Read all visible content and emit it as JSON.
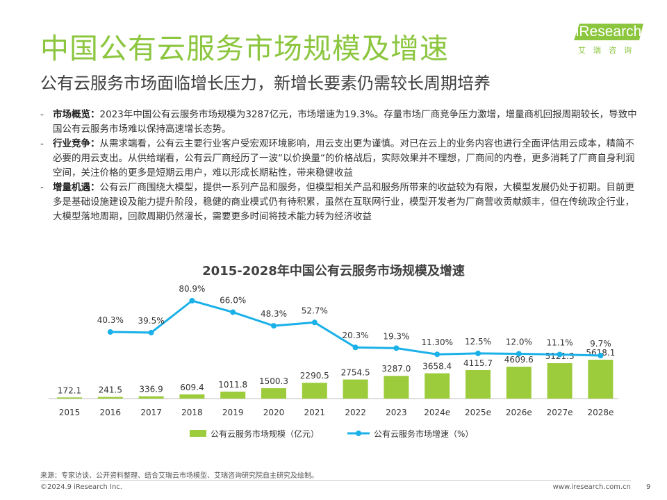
{
  "header": {
    "title": "中国公有云服务市场规模及增速",
    "subtitle": "公有云服务市场面临增长压力，新增长要素仍需较长周期培养",
    "logo_text": "iResearch",
    "logo_cn": "艾瑞咨询",
    "brand_color": "#8cc63f"
  },
  "bullets": [
    {
      "label": "市场概览：",
      "text": "2023年中国公有云服务市场规模为3287亿元，市场增速为19.3%。存量市场厂商竞争压力激增，增量商机回报周期较长，导致中国公有云服务市场难以保持高速增长态势。"
    },
    {
      "label": "行业竞争：",
      "text": "从需求端看，公有云主要行业客户受宏观环境影响，用云支出更为谨慎。对已在云上的业务内容也进行全面评估用云成本，精简不必要的用云支出。从供给端看，公有云厂商经历了一波“以价换量“的价格战后，实际效果并不理想，厂商间的内卷，更多消耗了厂商自身利润空间，关注价格的更多是短期云用户，难以形成长期粘性，带来稳健收益"
    },
    {
      "label": "增量机遇：",
      "text": "公有云厂商围绕大模型，提供一系列产品和服务，但模型相关产品和服务所带来的收益较为有限，大模型发展仍处于初期。目前更多是基础设施建设及能力提升阶段，稳健的商业模式仍有待积累，虽然在互联网行业，模型开发者为厂商营收贡献颇丰，但在传统政企行业，大模型落地周期，回款周期仍然漫长，需要更多时间将技术能力转为经济收益"
    }
  ],
  "chart_data": {
    "type": "bar",
    "title": "2015-2028年中国公有云服务市场规模及增速",
    "categories": [
      "2015",
      "2016",
      "2017",
      "2018",
      "2019",
      "2020",
      "2021",
      "2022",
      "2023",
      "2024e",
      "2025e",
      "2026e",
      "2027e",
      "2028e"
    ],
    "series": [
      {
        "name": "公有云服务市场规模（亿元）",
        "kind": "bar",
        "color": "#9ccc3c",
        "values": [
          172.1,
          241.5,
          336.9,
          609.4,
          1011.8,
          1500.3,
          2290.5,
          2754.5,
          3287.0,
          3658.4,
          4115.7,
          4609.6,
          5121.3,
          5618.1
        ],
        "labels": [
          "172.1",
          "241.5",
          "336.9",
          "609.4",
          "1011.8",
          "1500.3",
          "2290.5",
          "2754.5",
          "3287.0",
          "3658.4",
          "4115.7",
          "4609.6",
          "5121.3",
          "5618.1"
        ]
      },
      {
        "name": "公有云服务市场增速（%）",
        "kind": "line",
        "color": "#1ab0e8",
        "values": [
          null,
          40.3,
          39.5,
          80.9,
          66.0,
          48.3,
          52.7,
          20.3,
          19.3,
          11.3,
          12.5,
          12.0,
          11.1,
          9.7
        ],
        "labels": [
          "",
          "40.3%",
          "39.5%",
          "80.9%",
          "66.0%",
          "48.3%",
          "52.7%",
          "20.3%",
          "19.3%",
          "11.30%",
          "12.5%",
          "12.0%",
          "11.1%",
          "9.7%"
        ]
      }
    ],
    "legend_position": "bottom",
    "grid": false
  },
  "footer": {
    "source": "来源：专家访谈、公开资料整理、结合艾瑞云市场模型、艾瑞咨询研究院自主研究及绘制。",
    "copyright": "©2024.9 iResearch Inc.",
    "site": "www.iresearch.com.cn",
    "page": "9"
  }
}
